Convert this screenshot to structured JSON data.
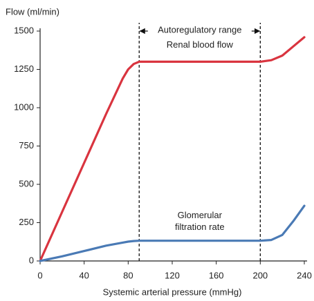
{
  "chart_data": {
    "type": "line",
    "ylabel": "Flow (ml/min)",
    "xlabel": "Systemic arterial pressure (mmHg)",
    "x": [
      0,
      20,
      40,
      60,
      75,
      80,
      85,
      90,
      100,
      200,
      210,
      220,
      230,
      240
    ],
    "series": [
      {
        "name": "Renal blood flow",
        "color": "#d9343f",
        "values": [
          0,
          320,
          640,
          960,
          1190,
          1250,
          1285,
          1300,
          1300,
          1300,
          1310,
          1340,
          1400,
          1460
        ]
      },
      {
        "name": "Glomerular filtration rate",
        "color": "#4a7ab5",
        "values": [
          0,
          30,
          65,
          100,
          120,
          126,
          130,
          132,
          132,
          132,
          137,
          170,
          260,
          360
        ]
      }
    ],
    "series_label_lines": [
      [
        "Renal blood flow"
      ],
      [
        "Glomerular",
        "filtration rate"
      ]
    ],
    "range_label": "Autoregulatory range",
    "vlines": [
      90,
      200
    ],
    "xlim": [
      0,
      240
    ],
    "xticks": [
      0,
      40,
      80,
      120,
      160,
      200,
      240
    ],
    "ylim": [
      0,
      1500
    ],
    "yticks": [
      0,
      250,
      500,
      750,
      1000,
      1250,
      1500
    ],
    "grid": false
  }
}
